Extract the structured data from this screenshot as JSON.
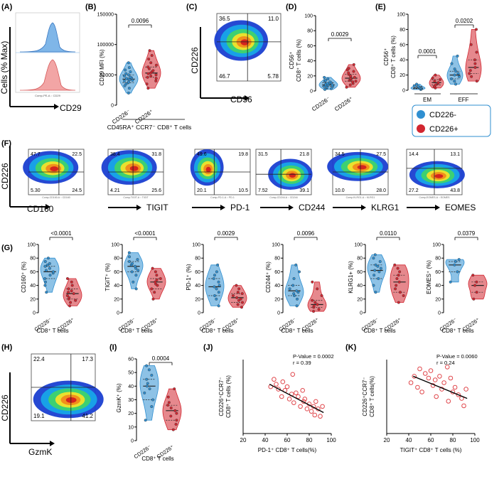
{
  "figure": {
    "colors": {
      "cd226neg": "#2f8fd1",
      "cd226pos": "#d22630",
      "hist_blue": "#7fb6e8",
      "hist_red": "#f2a5a5",
      "line": "#000000"
    },
    "panels": {
      "A": {
        "label": "(A)",
        "ylabel": "Cells (% Max)",
        "xlabel": "CD29",
        "axis_text": "Comp-PE-A :: CD29"
      },
      "B": {
        "label": "(B)",
        "ylabel": "CD29 MFI (%)",
        "yticks": [
          "0",
          "50000",
          "100000",
          "150000"
        ],
        "p": "0.0096",
        "cats": [
          "CD226⁻",
          "CD226⁺"
        ],
        "bottom": "CD45RA⁺ CCR7⁻ CD8⁺ T cells"
      },
      "C": {
        "label": "(C)",
        "ylabel": "CD226",
        "xlabel": "CD56",
        "quads": [
          "36.5",
          "11.0",
          "46.7",
          "5.78"
        ]
      },
      "D": {
        "label": "(D)",
        "ylabel1": "CD56⁺",
        "ylabel2": "CD8⁺ T cells (%)",
        "yticks": [
          "0",
          "20",
          "40",
          "60",
          "80",
          "100"
        ],
        "p": "0.0029",
        "cats": [
          "CD226⁻",
          "CD226⁺"
        ]
      },
      "E": {
        "label": "(E)",
        "ylabel1": "CD56⁺",
        "ylabel2": "CD8⁺ T cells (%)",
        "yticks": [
          "0",
          "20",
          "40",
          "60",
          "80",
          "100"
        ],
        "p1": "0.0001",
        "p2": "0.0202",
        "groups": [
          "EM",
          "EFF"
        ],
        "legend": [
          "CD226-",
          "CD226+"
        ]
      },
      "F": {
        "label": "(F)",
        "ylabel": "CD226",
        "markers": [
          "CD160",
          "TIGIT",
          "PD-1",
          "CD244",
          "KLRG1",
          "EOMES"
        ],
        "quads": [
          [
            "47.7",
            "22.5",
            "5.30",
            "24.5"
          ],
          [
            "38.4",
            "31.8",
            "4.21",
            "25.6"
          ],
          [
            "49.6",
            "19.8",
            "20.1",
            "10.5"
          ],
          [
            "31.5",
            "21.8",
            "7.52",
            "39.1"
          ],
          [
            "34.5",
            "27.5",
            "10.0",
            "28.0"
          ],
          [
            "14.4",
            "13.1",
            "27.2",
            "43.8"
          ]
        ]
      },
      "G": {
        "label": "(G)",
        "ylabels": [
          "CD160⁺ (%)",
          "TIGIT⁺ (%)",
          "PD-1⁺ (%)",
          "CD244⁺ (%)",
          "KLRG1+ (%)",
          "EOMES⁺ (%)"
        ],
        "pvals": [
          "<0.0001",
          "<0.0001",
          "0.0029",
          "0.0096",
          "0.0110",
          "0.0379"
        ],
        "yticks": [
          "0",
          "20",
          "40",
          "60",
          "80",
          "100"
        ],
        "cats": [
          "CD226⁻",
          "CD226⁺"
        ],
        "bottom": "CD8⁺ T cells"
      },
      "H": {
        "label": "(H)",
        "ylabel": "CD226",
        "xlabel": "GzmK",
        "quads": [
          "22.4",
          "17.3",
          "19.1",
          "41.2"
        ]
      },
      "I": {
        "label": "(I)",
        "ylabel": "GzmK⁺ (%)",
        "yticks": [
          "0",
          "10",
          "20",
          "30",
          "40",
          "50",
          "60"
        ],
        "p": "0.0004",
        "cats": [
          "CD226⁻",
          "CD226⁺"
        ],
        "bottom": "CD8⁺ T cells"
      },
      "J": {
        "label": "(J)",
        "ylabel1": "CD226⁺CCR7⁻",
        "ylabel2": "CD8⁺ T cells (%)",
        "xlabel": "PD-1⁺ CD8⁺ T cells(%)",
        "pval": "P-Value = 0.0002",
        "r": "r = 0.39",
        "xticks": [
          "20",
          "40",
          "60",
          "80",
          "100"
        ]
      },
      "K": {
        "label": "(K)",
        "ylabel1": "CD226⁺CCR7⁻",
        "ylabel2": "CD8⁺ T cells(%)",
        "xlabel": "TIGIT⁺ CD8⁺ T cells (%)",
        "pval": "P-Value = 0.0060",
        "r": "r = 0.24",
        "xticks": [
          "20",
          "40",
          "60",
          "80",
          "100"
        ]
      }
    }
  },
  "chart_data": [
    {
      "type": "scatter",
      "panel": "B",
      "title": "CD29 MFI",
      "categories": [
        "CD226⁻",
        "CD226⁺"
      ],
      "ylabel": "CD29 MFI (%)",
      "ylim": [
        0,
        150000
      ],
      "series": [
        {
          "name": "CD226⁻",
          "values": [
            20000,
            28000,
            32000,
            35000,
            37000,
            38000,
            40000,
            41000,
            42000,
            43000,
            44000,
            45000,
            46000,
            48000,
            50000,
            52000,
            55000,
            58000,
            62000,
            70000
          ]
        },
        {
          "name": "CD226⁺",
          "values": [
            28000,
            35000,
            40000,
            44000,
            46000,
            48000,
            50000,
            52000,
            53000,
            55000,
            57000,
            60000,
            63000,
            66000,
            70000,
            76000,
            82000,
            90000
          ]
        }
      ]
    },
    {
      "type": "scatter",
      "panel": "D",
      "categories": [
        "CD226⁻",
        "CD226⁺"
      ],
      "ylim": [
        0,
        100
      ],
      "series": [
        {
          "name": "CD226⁻",
          "values": [
            2,
            3,
            4,
            5,
            6,
            6,
            7,
            8,
            8,
            9,
            10,
            10,
            11,
            12,
            13,
            14,
            16,
            18
          ]
        },
        {
          "name": "CD226⁺",
          "values": [
            5,
            8,
            10,
            12,
            13,
            14,
            15,
            16,
            17,
            18,
            19,
            20,
            22,
            24,
            26,
            28,
            30,
            35
          ]
        }
      ]
    },
    {
      "type": "scatter",
      "panel": "E",
      "categories": [
        "EM CD226-",
        "EM CD226+",
        "EFF CD226-",
        "EFF CD226+"
      ],
      "ylim": [
        0,
        100
      ],
      "series": [
        {
          "name": "EM CD226-",
          "values": [
            1,
            2,
            2,
            3,
            3,
            4,
            5,
            6,
            8
          ]
        },
        {
          "name": "EM CD226+",
          "values": [
            3,
            5,
            7,
            9,
            10,
            12,
            14,
            16,
            20
          ]
        },
        {
          "name": "EFF CD226-",
          "values": [
            8,
            12,
            15,
            18,
            20,
            22,
            25,
            28,
            35,
            45
          ]
        },
        {
          "name": "EFF CD226+",
          "values": [
            12,
            18,
            22,
            26,
            30,
            35,
            40,
            50,
            60,
            80
          ]
        }
      ]
    },
    {
      "type": "scatter",
      "panel": "G-CD160",
      "categories": [
        "CD226⁻",
        "CD226⁺"
      ],
      "ylim": [
        0,
        100
      ],
      "series": [
        {
          "name": "CD226⁻",
          "values": [
            30,
            40,
            45,
            50,
            55,
            58,
            60,
            62,
            65,
            68,
            70,
            72,
            75,
            80
          ]
        },
        {
          "name": "CD226⁺",
          "values": [
            10,
            15,
            18,
            20,
            22,
            25,
            28,
            30,
            32,
            35,
            40,
            45,
            50
          ]
        }
      ]
    },
    {
      "type": "scatter",
      "panel": "G-TIGIT",
      "categories": [
        "CD226⁻",
        "CD226⁺"
      ],
      "ylim": [
        0,
        100
      ],
      "series": [
        {
          "name": "CD226⁻",
          "values": [
            35,
            45,
            55,
            60,
            62,
            65,
            68,
            70,
            72,
            75,
            78,
            82,
            88
          ]
        },
        {
          "name": "CD226⁺",
          "values": [
            20,
            30,
            35,
            40,
            42,
            45,
            48,
            50,
            55,
            60,
            65
          ]
        }
      ]
    },
    {
      "type": "scatter",
      "panel": "G-PD-1",
      "categories": [
        "CD226⁻",
        "CD226⁺"
      ],
      "ylim": [
        0,
        100
      ],
      "series": [
        {
          "name": "CD226⁻",
          "values": [
            10,
            20,
            25,
            30,
            35,
            38,
            40,
            45,
            50,
            55,
            60,
            70
          ]
        },
        {
          "name": "CD226⁺",
          "values": [
            8,
            12,
            15,
            18,
            20,
            22,
            25,
            28,
            30,
            35,
            40
          ]
        }
      ]
    },
    {
      "type": "scatter",
      "panel": "G-CD244",
      "categories": [
        "CD226⁻",
        "CD226⁺"
      ],
      "ylim": [
        0,
        100
      ],
      "series": [
        {
          "name": "CD226⁻",
          "values": [
            10,
            20,
            25,
            28,
            30,
            32,
            35,
            40,
            50,
            60,
            70
          ]
        },
        {
          "name": "CD226⁺",
          "values": [
            2,
            5,
            8,
            10,
            12,
            15,
            18,
            25,
            35,
            45
          ]
        }
      ]
    },
    {
      "type": "scatter",
      "panel": "G-KLRG1",
      "categories": [
        "CD226⁻",
        "CD226⁺"
      ],
      "ylim": [
        0,
        100
      ],
      "series": [
        {
          "name": "CD226⁻",
          "values": [
            30,
            40,
            50,
            55,
            60,
            62,
            65,
            68,
            70,
            75,
            80,
            85
          ]
        },
        {
          "name": "CD226⁺",
          "values": [
            15,
            25,
            30,
            35,
            40,
            45,
            50,
            55,
            60,
            65,
            70
          ]
        }
      ]
    },
    {
      "type": "scatter",
      "panel": "G-EOMES",
      "categories": [
        "CD226⁻",
        "CD226⁺"
      ],
      "ylim": [
        0,
        100
      ],
      "series": [
        {
          "name": "CD226⁻",
          "values": [
            45,
            60,
            70,
            75,
            78
          ]
        },
        {
          "name": "CD226⁺",
          "values": [
            20,
            30,
            40,
            45,
            55
          ]
        }
      ]
    },
    {
      "type": "scatter",
      "panel": "I",
      "categories": [
        "CD226⁻",
        "CD226⁺"
      ],
      "ylim": [
        0,
        60
      ],
      "series": [
        {
          "name": "CD226⁻",
          "values": [
            15,
            25,
            30,
            35,
            38,
            40,
            42,
            45,
            48,
            52,
            55
          ]
        },
        {
          "name": "CD226⁺",
          "values": [
            8,
            12,
            15,
            18,
            20,
            22,
            24,
            26,
            28,
            32,
            38
          ]
        }
      ]
    },
    {
      "type": "scatter",
      "panel": "J",
      "xlabel": "PD-1⁺ CD8⁺ T cells(%)",
      "xlim": [
        20,
        100
      ],
      "ylim": [
        0,
        60
      ],
      "x": [
        45,
        48,
        50,
        52,
        55,
        56,
        58,
        60,
        62,
        64,
        65,
        66,
        68,
        70,
        72,
        74,
        75,
        76,
        78,
        80,
        82,
        84,
        85,
        86,
        88,
        90,
        92
      ],
      "y": [
        38,
        44,
        40,
        36,
        30,
        42,
        35,
        38,
        28,
        32,
        48,
        25,
        33,
        30,
        22,
        35,
        26,
        28,
        20,
        24,
        18,
        22,
        15,
        26,
        20,
        14,
        22
      ],
      "fit": [
        [
          44,
          40
        ],
        [
          93,
          17
        ]
      ]
    },
    {
      "type": "scatter",
      "panel": "K",
      "xlabel": "TIGIT⁺ CD8⁺ T cells (%)",
      "xlim": [
        20,
        100
      ],
      "ylim": [
        0,
        80
      ],
      "x": [
        42,
        45,
        48,
        50,
        52,
        55,
        58,
        60,
        62,
        64,
        65,
        68,
        70,
        72,
        75,
        76,
        78,
        80,
        82,
        85,
        88,
        90,
        92
      ],
      "y": [
        55,
        62,
        50,
        70,
        45,
        65,
        60,
        68,
        52,
        58,
        40,
        62,
        48,
        55,
        72,
        35,
        60,
        45,
        50,
        42,
        38,
        30,
        48
      ],
      "fit": [
        [
          44,
          62
        ],
        [
          93,
          38
        ]
      ]
    }
  ]
}
